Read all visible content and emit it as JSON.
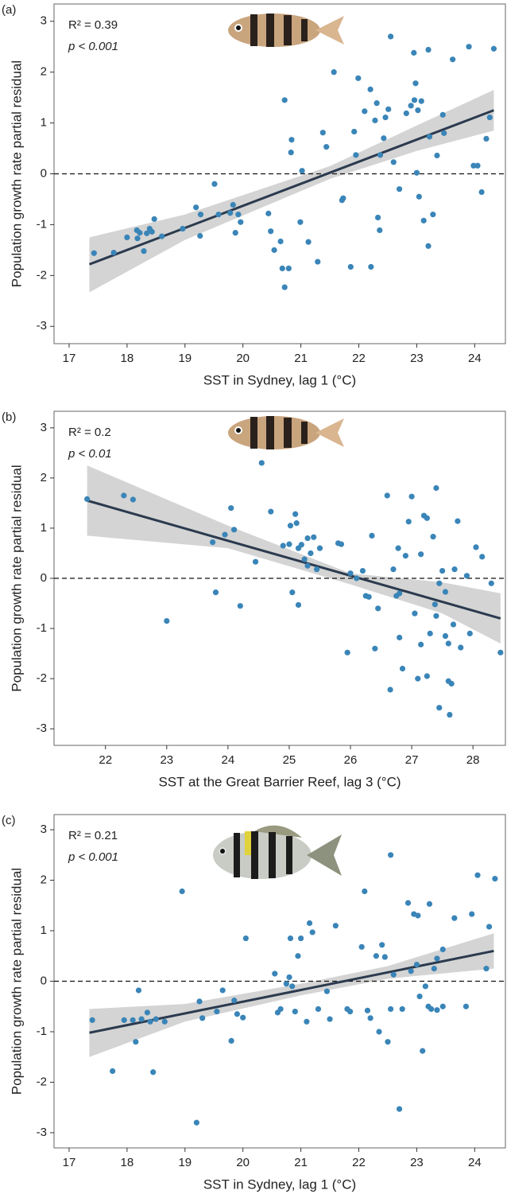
{
  "chart_data": [
    {
      "type": "scatter",
      "panel_label": "(a)",
      "annotations": [
        "R² = 0.39",
        "p < 0.001"
      ],
      "xlabel": "SST in Sydney, lag 1 (°C)",
      "ylabel": "Population growth rate partial residual",
      "color": "#3a85b8",
      "x": [
        17.43,
        17.77,
        18.0,
        18.17,
        18.18,
        18.22,
        18.29,
        18.34,
        18.39,
        18.43,
        18.47,
        18.6,
        18.96,
        19.19,
        19.26,
        19.27,
        19.51,
        19.58,
        19.78,
        19.83,
        19.87,
        19.92,
        19.96,
        20.44,
        20.48,
        20.54,
        20.65,
        20.68,
        20.72,
        20.72,
        20.79,
        20.83,
        20.84,
        20.99,
        21.02,
        21.13,
        21.29,
        21.38,
        21.44,
        21.57,
        21.71,
        21.73,
        21.86,
        21.92,
        21.95,
        21.99,
        22.1,
        22.2,
        22.21,
        22.28,
        22.31,
        22.33,
        22.36,
        22.37,
        22.55,
        22.43,
        22.46,
        22.6,
        22.51,
        22.7,
        22.95,
        22.82,
        22.9,
        22.96,
        22.98,
        23.0,
        23.02,
        23.04,
        23.08,
        23.12,
        23.2,
        23.2,
        23.22,
        23.28,
        23.35,
        23.45,
        23.47,
        23.62,
        23.9,
        23.98,
        24.05,
        24.12,
        24.2,
        24.26,
        24.33
      ],
      "values": [
        -1.56,
        -1.55,
        -1.25,
        -1.11,
        -1.27,
        -1.16,
        -1.52,
        -1.17,
        -1.08,
        -1.14,
        -0.89,
        -1.23,
        -1.08,
        -0.66,
        -1.22,
        -0.8,
        -0.2,
        -0.8,
        -0.77,
        -0.61,
        -1.16,
        -0.8,
        -0.95,
        -0.78,
        -1.13,
        -1.5,
        -1.33,
        -1.86,
        1.45,
        -2.23,
        -1.86,
        0.42,
        0.67,
        -0.95,
        0.06,
        -1.34,
        -1.73,
        0.81,
        0.53,
        2.0,
        -0.52,
        -0.48,
        -1.83,
        0.83,
        0.37,
        1.88,
        1.23,
        1.66,
        -1.83,
        1.05,
        1.39,
        -0.86,
        -1.11,
        0.37,
        2.7,
        0.7,
        1.11,
        0.23,
        1.27,
        -0.3,
        2.38,
        1.19,
        1.34,
        1.45,
        1.78,
        0.02,
        1.25,
        -0.45,
        1.43,
        -0.92,
        -1.42,
        2.44,
        0.73,
        -0.8,
        0.36,
        1.16,
        0.8,
        2.25,
        2.5,
        0.16,
        0.16,
        -0.36,
        0.69,
        1.11,
        2.46
      ],
      "xlim": [
        16.74,
        24.53
      ],
      "ylim": [
        -3.34,
        3.34
      ],
      "xticks": [
        17,
        18,
        19,
        20,
        21,
        22,
        23,
        24
      ],
      "yticks": [
        -3,
        -2,
        -1,
        0,
        1,
        2,
        3
      ],
      "hline": 0,
      "fit": {
        "x": [
          17.35,
          24.33
        ],
        "values": [
          -1.78,
          1.25
        ],
        "color": "#2b3a4e"
      },
      "ci": {
        "x": [
          17.35,
          19,
          21.5,
          23,
          24.33
        ],
        "lower": [
          -2.33,
          -1.3,
          -0.1,
          0.45,
          0.85
        ],
        "upper": [
          -1.25,
          -0.8,
          0.15,
          0.95,
          1.65
        ],
        "color": "#d4d4d4"
      }
    },
    {
      "type": "scatter",
      "panel_label": "(b)",
      "annotations": [
        "R² = 0.2",
        "p < 0.01"
      ],
      "xlabel": "SST at the Great Barrier Reef, lag 3 (°C)",
      "ylabel": "Population growth rate partial residual",
      "color": "#3a85b8",
      "x": [
        21.7,
        22.3,
        22.45,
        23.0,
        23.75,
        23.8,
        23.95,
        24.05,
        24.1,
        24.2,
        24.45,
        24.55,
        24.7,
        24.9,
        25.0,
        25.02,
        25.05,
        25.1,
        25.12,
        25.15,
        25.15,
        25.2,
        25.25,
        25.3,
        25.3,
        25.35,
        25.4,
        25.45,
        25.5,
        25.8,
        25.85,
        25.95,
        26.0,
        26.1,
        26.2,
        26.25,
        26.3,
        26.35,
        26.4,
        26.45,
        26.6,
        26.65,
        26.7,
        26.75,
        26.78,
        26.8,
        26.8,
        26.85,
        26.9,
        26.95,
        27.0,
        27.05,
        27.1,
        27.15,
        27.15,
        27.2,
        27.25,
        27.25,
        27.3,
        27.35,
        27.38,
        27.4,
        27.4,
        27.45,
        27.45,
        27.5,
        27.55,
        27.55,
        27.6,
        27.62,
        27.65,
        27.68,
        27.7,
        27.75,
        27.8,
        27.9,
        27.95,
        28.05,
        28.15,
        28.3,
        28.45,
        27.6
      ],
      "values": [
        1.58,
        1.65,
        1.57,
        -0.85,
        0.72,
        -0.28,
        0.87,
        1.4,
        0.97,
        -0.55,
        0.33,
        2.3,
        1.33,
        0.65,
        0.68,
        1.05,
        -0.28,
        1.28,
        1.1,
        -0.53,
        0.6,
        0.67,
        0.38,
        0.8,
        0.25,
        0.5,
        0.82,
        0.18,
        0.6,
        0.7,
        0.68,
        -1.48,
        0.1,
        0.0,
        0.15,
        -0.35,
        -0.37,
        0.85,
        -1.4,
        -0.6,
        1.65,
        -2.22,
        0.18,
        -0.35,
        0.6,
        -0.3,
        -1.18,
        -1.8,
        0.45,
        1.13,
        1.63,
        -0.7,
        -2.0,
        -1.32,
        0.48,
        1.25,
        -1.95,
        1.2,
        -1.1,
        0.83,
        -0.52,
        -0.75,
        1.8,
        -2.58,
        -0.1,
        0.15,
        -0.27,
        -1.15,
        -1.3,
        -2.72,
        -2.1,
        -0.92,
        0.18,
        1.14,
        -1.38,
        0.05,
        -1.1,
        0.62,
        0.43,
        -0.1,
        -1.48,
        -2.05
      ],
      "xlim": [
        21.16,
        28.53
      ],
      "ylim": [
        -3.33,
        3.33
      ],
      "xticks": [
        22,
        23,
        24,
        25,
        26,
        27,
        28
      ],
      "yticks": [
        -3,
        -2,
        -1,
        0,
        1,
        2,
        3
      ],
      "hline": 0,
      "fit": {
        "x": [
          21.7,
          28.45
        ],
        "values": [
          1.55,
          -0.8
        ],
        "color": "#2b3a4e"
      },
      "ci": {
        "x": [
          21.7,
          24,
          26,
          27.5,
          28.45
        ],
        "lower": [
          0.85,
          0.6,
          -0.12,
          -0.7,
          -1.3
        ],
        "upper": [
          2.25,
          1.05,
          0.1,
          -0.08,
          -0.3
        ],
        "color": "#d4d4d4"
      }
    },
    {
      "type": "scatter",
      "panel_label": "(c)",
      "annotations": [
        "R² = 0.21",
        "p < 0.001"
      ],
      "xlabel": "SST in Sydney, lag 1 (°C)",
      "ylabel": "Population growth rate partial residual",
      "color": "#3a85b8",
      "x": [
        17.4,
        17.75,
        17.95,
        18.1,
        18.15,
        18.2,
        18.25,
        18.35,
        18.4,
        18.45,
        18.5,
        18.65,
        18.95,
        19.2,
        19.25,
        19.3,
        19.55,
        19.65,
        19.8,
        19.85,
        19.9,
        20.0,
        20.05,
        20.55,
        20.6,
        20.65,
        20.75,
        20.8,
        20.82,
        20.85,
        20.9,
        20.95,
        21.0,
        21.1,
        21.15,
        21.2,
        21.3,
        21.45,
        21.5,
        21.6,
        21.8,
        21.85,
        22.05,
        22.1,
        22.15,
        22.2,
        22.3,
        22.35,
        22.4,
        22.45,
        22.5,
        22.55,
        22.55,
        22.6,
        22.7,
        22.75,
        22.85,
        22.9,
        22.95,
        23.0,
        23.02,
        23.05,
        23.1,
        23.15,
        23.2,
        23.22,
        23.25,
        23.3,
        23.35,
        23.35,
        23.45,
        23.45,
        23.65,
        23.85,
        23.95,
        24.05,
        24.2,
        24.25,
        24.35
      ],
      "values": [
        -0.77,
        -1.78,
        -0.77,
        -0.77,
        -1.2,
        -0.18,
        -0.75,
        -0.62,
        -0.8,
        -1.8,
        -0.75,
        -0.8,
        1.78,
        -2.8,
        -0.4,
        -0.73,
        -0.6,
        -0.18,
        -1.18,
        -0.38,
        -0.65,
        -0.72,
        0.85,
        0.15,
        -0.62,
        -0.55,
        -0.05,
        0.08,
        0.85,
        -0.1,
        -0.6,
        0.5,
        0.85,
        -0.8,
        1.15,
        0.97,
        -0.55,
        -0.2,
        -0.75,
        1.1,
        -0.55,
        -0.6,
        0.68,
        1.78,
        -0.58,
        -0.73,
        0.5,
        -1.0,
        0.72,
        0.48,
        -1.2,
        -0.55,
        2.5,
        0.13,
        -2.53,
        -0.55,
        1.55,
        0.2,
        1.33,
        0.33,
        1.3,
        -0.3,
        -1.38,
        -0.1,
        -0.5,
        1.53,
        -0.55,
        0.25,
        0.45,
        -0.57,
        0.63,
        -0.5,
        1.25,
        -0.5,
        1.33,
        2.1,
        0.25,
        1.08,
        2.03
      ],
      "xlim": [
        16.74,
        24.53
      ],
      "ylim": [
        -3.3,
        3.3
      ],
      "xticks": [
        17,
        18,
        19,
        20,
        21,
        22,
        23,
        24
      ],
      "yticks": [
        -3,
        -2,
        -1,
        0,
        1,
        2,
        3
      ],
      "hline": 0,
      "fit": {
        "x": [
          17.35,
          24.33
        ],
        "values": [
          -1.02,
          0.6
        ],
        "color": "#2b3a4e"
      },
      "ci": {
        "x": [
          17.35,
          19,
          21,
          22.5,
          24.33
        ],
        "lower": [
          -1.5,
          -0.8,
          -0.28,
          0.05,
          0.25
        ],
        "upper": [
          -0.55,
          -0.45,
          -0.05,
          0.3,
          0.95
        ],
        "color": "#d4d4d4"
      }
    }
  ]
}
